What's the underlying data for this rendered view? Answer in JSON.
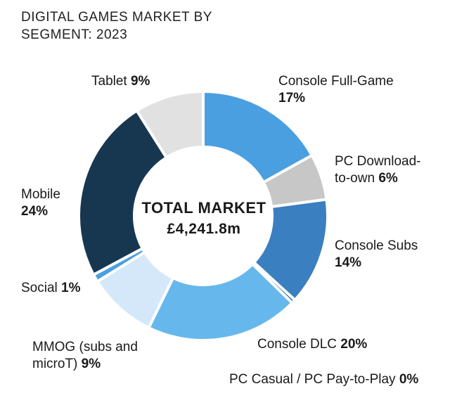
{
  "chart_data": {
    "type": "pie",
    "title": "DIGITAL GAMES MARKET BY SEGMENT: 2023",
    "center_label": "TOTAL MARKET",
    "center_value": "£4,241.8m",
    "slices": [
      {
        "name": "Console Full-Game",
        "value": 17,
        "pct_label": "17%",
        "color": "#4a9fe0"
      },
      {
        "name": "PC Download-to-own",
        "value": 6,
        "pct_label": "6%",
        "color": "#c7c7c7"
      },
      {
        "name": "Console Subs",
        "value": 14,
        "pct_label": "14%",
        "color": "#3a7fbf"
      },
      {
        "name": "PC Casual / PC Pay-to-Play",
        "value": 0.5,
        "pct_label": "0%",
        "color": "#1f5f99"
      },
      {
        "name": "Console DLC",
        "value": 20,
        "pct_label": "20%",
        "color": "#66b8ec"
      },
      {
        "name": "MMOG (subs and microT)",
        "value": 9,
        "pct_label": "9%",
        "color": "#d4e8f9"
      },
      {
        "name": "Social",
        "value": 1,
        "pct_label": "1%",
        "color": "#4a9fe0"
      },
      {
        "name": "Mobile",
        "value": 24,
        "pct_label": "24%",
        "color": "#173751"
      },
      {
        "name": "Tablet",
        "value": 9,
        "pct_label": "9%",
        "color": "#e1e1e1"
      }
    ]
  },
  "labels": {
    "console_full_game_line1": "Console Full-Game",
    "pc_download_line1": "PC Download-",
    "pc_download_line2": "to-own",
    "console_subs_line1": "Console Subs",
    "console_dlc_line1": "Console DLC",
    "pc_casual_line1": "PC Casual / PC Pay-to-Play",
    "mmog_line1": "MMOG (subs and",
    "mmog_line2": "microT)",
    "social_line1": "Social",
    "mobile_line1": "Mobile",
    "tablet_line1": "Tablet"
  }
}
